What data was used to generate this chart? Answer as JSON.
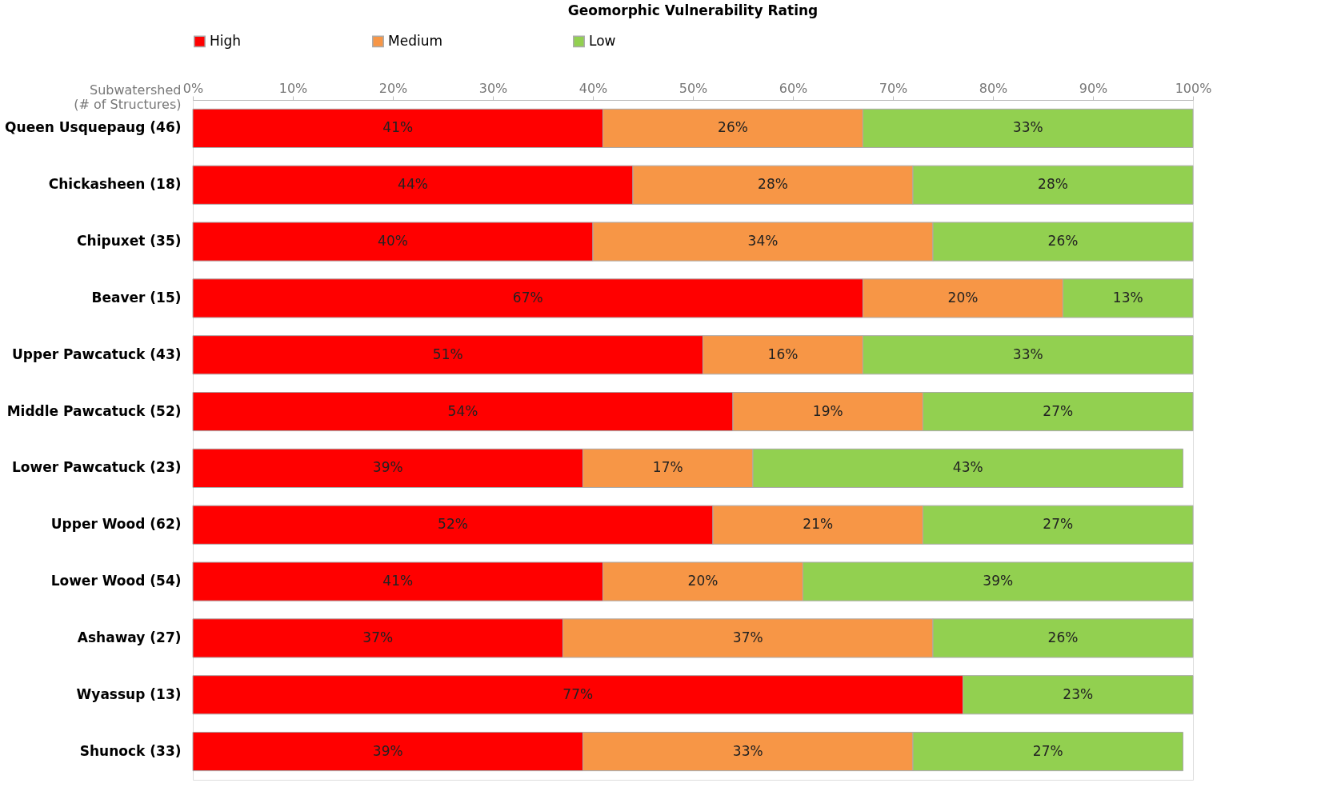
{
  "chart_data": {
    "type": "bar",
    "orientation": "horizontal",
    "stacked": true,
    "title": "Geomorphic Vulnerability Rating",
    "ylabel": "Subwatershed\n(# of Structures)",
    "categories": [
      "Queen Usquepaug (46)",
      "Chickasheen (18)",
      "Chipuxet (35)",
      "Beaver (15)",
      "Upper Pawcatuck (43)",
      "Middle Pawcatuck (52)",
      "Lower Pawcatuck (23)",
      "Upper Wood (62)",
      "Lower Wood (54)",
      "Ashaway (27)",
      "Wyassup (13)",
      "Shunock (33)"
    ],
    "series": [
      {
        "name": "High",
        "color": "#ff0000",
        "values": [
          41,
          44,
          40,
          67,
          51,
          54,
          39,
          52,
          41,
          37,
          77,
          39
        ],
        "value_labels": [
          "41%",
          "44%",
          "40%",
          "67%",
          "51%",
          "54%",
          "39%",
          "52%",
          "41%",
          "37%",
          "77%",
          "39%"
        ]
      },
      {
        "name": "Medium",
        "color": "#f79646",
        "values": [
          26,
          28,
          34,
          20,
          16,
          19,
          17,
          21,
          20,
          37,
          null,
          33
        ],
        "value_labels": [
          "26%",
          "28%",
          "34%",
          "20%",
          "16%",
          "19%",
          "17%",
          "21%",
          "20%",
          "37%",
          null,
          "33%"
        ]
      },
      {
        "name": "Low",
        "color": "#92d050",
        "values": [
          33,
          28,
          26,
          13,
          33,
          27,
          43,
          27,
          39,
          26,
          23,
          27
        ],
        "value_labels": [
          "33%",
          "28%",
          "26%",
          "13%",
          "33%",
          "27%",
          "43%",
          "27%",
          "39%",
          "26%",
          "23%",
          "27%"
        ]
      }
    ],
    "xlim": [
      0,
      100
    ],
    "xticks": [
      {
        "value": 0,
        "label": "0%"
      },
      {
        "value": 10,
        "label": "10%"
      },
      {
        "value": 20,
        "label": "20%"
      },
      {
        "value": 30,
        "label": "30%"
      },
      {
        "value": 40,
        "label": "40%"
      },
      {
        "value": 50,
        "label": "50%"
      },
      {
        "value": 60,
        "label": "60%"
      },
      {
        "value": 70,
        "label": "70%"
      },
      {
        "value": 80,
        "label": "80%"
      },
      {
        "value": 90,
        "label": "90%"
      },
      {
        "value": 100,
        "label": "100%"
      }
    ],
    "legend": "top",
    "grid": false
  }
}
